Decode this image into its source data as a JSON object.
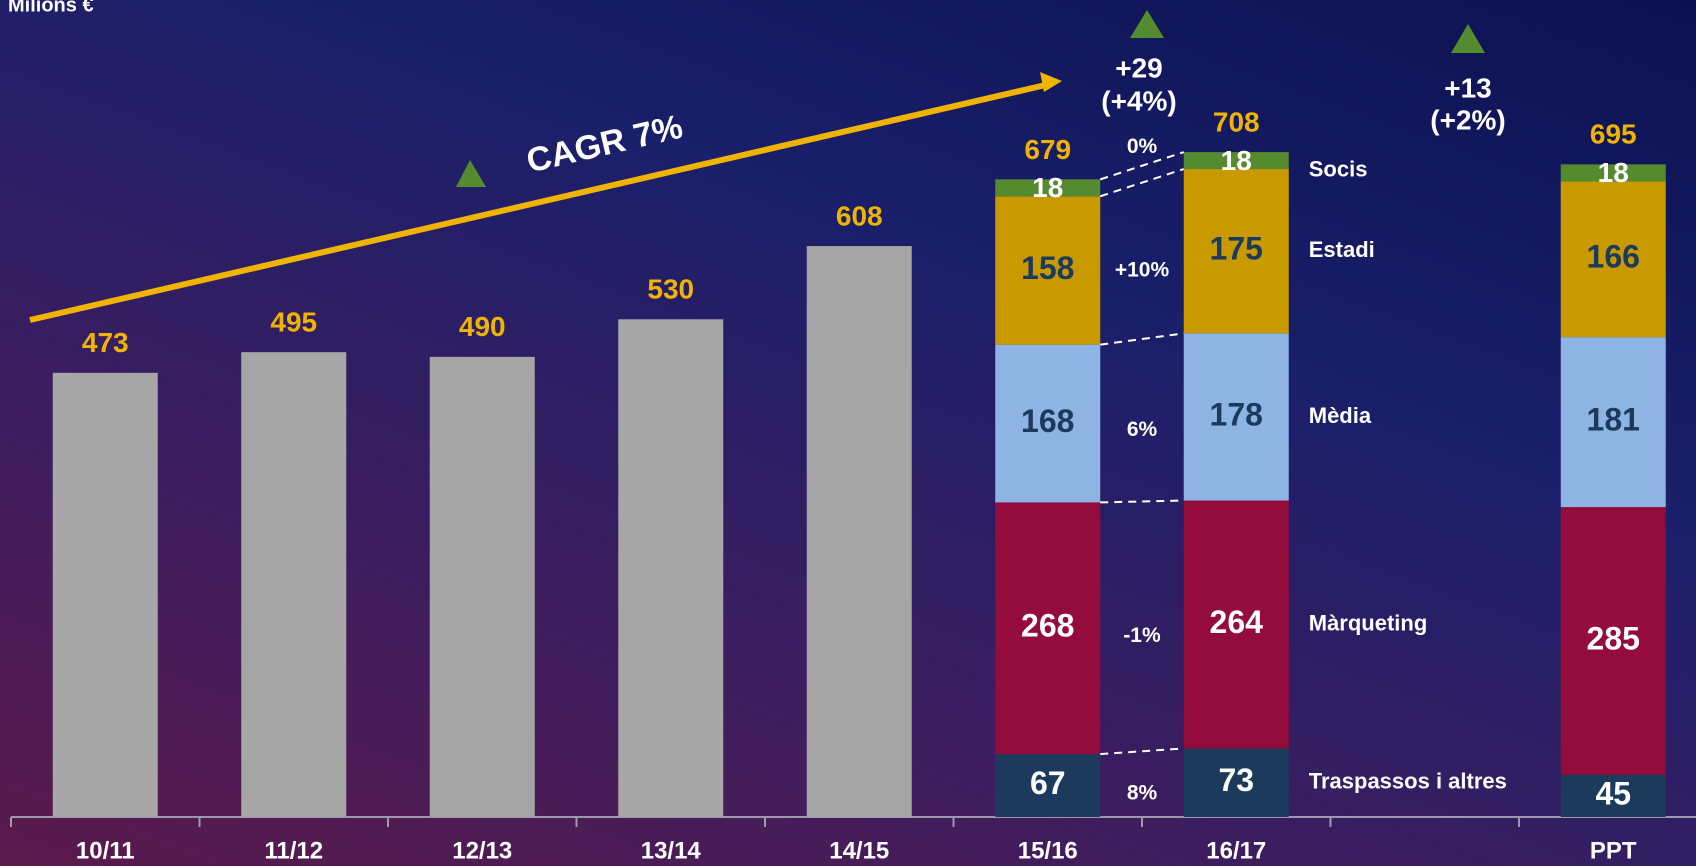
{
  "chart_data": {
    "type": "bar",
    "unit_label": "Milions €",
    "categories": [
      "10/11",
      "11/12",
      "12/13",
      "13/14",
      "14/15",
      "15/16",
      "16/17",
      null,
      "PPT"
    ],
    "values": [
      473,
      495,
      490,
      530,
      608,
      null,
      null,
      null,
      null
    ],
    "color": "#a6a6a6",
    "totals": [
      null,
      null,
      null,
      null,
      null,
      679,
      708,
      null,
      695
    ],
    "series": [
      {
        "name": "Traspassos i altres",
        "color": "#1b3a5c",
        "label_color": "#ffffff",
        "change": "8%",
        "values": [
          null,
          null,
          null,
          null,
          null,
          67,
          73,
          null,
          45
        ]
      },
      {
        "name": "Màrqueting",
        "color": "#940c3c",
        "label_color": "#ffffff",
        "change": "-1%",
        "values": [
          null,
          null,
          null,
          null,
          null,
          268,
          264,
          null,
          285
        ]
      },
      {
        "name": "Mèdia",
        "color": "#8eb4e3",
        "label_color": "#1b3a5c",
        "change": "6%",
        "values": [
          null,
          null,
          null,
          null,
          null,
          168,
          178,
          null,
          181
        ]
      },
      {
        "name": "Estadi",
        "color": "#c89a00",
        "label_color": "#1b3a5c",
        "change": "+10%",
        "values": [
          null,
          null,
          null,
          null,
          null,
          158,
          175,
          null,
          166
        ]
      },
      {
        "name": "Socis",
        "color": "#558b2f",
        "label_color": "#ffffff",
        "change": "0%",
        "values": [
          null,
          null,
          null,
          null,
          null,
          18,
          18,
          null,
          18
        ]
      }
    ],
    "annotations": [
      "CAGR 7%",
      "+29",
      "(+4%)",
      "+13",
      "(+2%)"
    ],
    "ylim": [
      0,
      870
    ]
  }
}
